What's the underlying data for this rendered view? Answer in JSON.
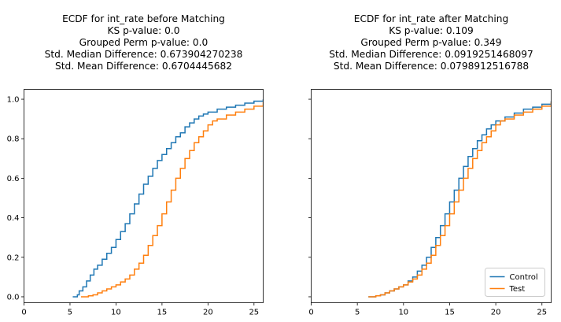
{
  "colors": {
    "control": "#1f77b4",
    "test": "#ff7f0e",
    "axes": "#000000",
    "legend_border": "#cccccc"
  },
  "chart_data": [
    {
      "type": "line",
      "variant": "ecdf-step",
      "title_lines": [
        "ECDF for int_rate before Matching",
        "KS p-value: 0.0",
        "Grouped Perm p-value: 0.0",
        "Std. Median Difference: 0.673904270238",
        "Std. Mean Difference: 0.6704445682"
      ],
      "xlabel": "",
      "ylabel": "",
      "xlim": [
        0,
        26
      ],
      "ylim": [
        -0.03,
        1.05
      ],
      "xticks": [
        "0",
        "5",
        "10",
        "15",
        "20",
        "25"
      ],
      "yticks": [
        "0.0",
        "0.2",
        "0.4",
        "0.6",
        "0.8",
        "1.0"
      ],
      "grid": false,
      "legend": null,
      "series": [
        {
          "key": "control",
          "x": [
            5.3,
            5.8,
            6.0,
            6.4,
            6.8,
            7.2,
            7.6,
            8.0,
            8.5,
            9.0,
            9.5,
            10.0,
            10.5,
            11.0,
            11.5,
            12.0,
            12.5,
            13.0,
            13.5,
            14.0,
            14.5,
            15.0,
            15.5,
            16.0,
            16.5,
            17.0,
            17.5,
            18.0,
            18.5,
            19.0,
            19.5,
            20.0,
            21.0,
            22.0,
            23.0,
            24.0,
            25.0,
            26.0
          ],
          "y": [
            0.0,
            0.01,
            0.03,
            0.05,
            0.08,
            0.11,
            0.14,
            0.16,
            0.19,
            0.22,
            0.25,
            0.29,
            0.33,
            0.37,
            0.42,
            0.47,
            0.52,
            0.57,
            0.61,
            0.65,
            0.69,
            0.72,
            0.75,
            0.78,
            0.81,
            0.83,
            0.86,
            0.88,
            0.9,
            0.915,
            0.925,
            0.935,
            0.95,
            0.96,
            0.97,
            0.98,
            0.99,
            1.0
          ]
        },
        {
          "key": "test",
          "x": [
            6.2,
            7.0,
            7.5,
            8.0,
            8.5,
            9.0,
            9.5,
            10.0,
            10.5,
            11.0,
            11.5,
            12.0,
            12.5,
            13.0,
            13.5,
            14.0,
            14.5,
            15.0,
            15.5,
            16.0,
            16.5,
            17.0,
            17.5,
            18.0,
            18.5,
            19.0,
            19.5,
            20.0,
            20.5,
            21.0,
            22.0,
            23.0,
            24.0,
            25.0,
            26.0
          ],
          "y": [
            0.0,
            0.005,
            0.01,
            0.02,
            0.03,
            0.04,
            0.05,
            0.06,
            0.075,
            0.09,
            0.11,
            0.14,
            0.17,
            0.21,
            0.26,
            0.31,
            0.36,
            0.42,
            0.48,
            0.54,
            0.6,
            0.65,
            0.7,
            0.74,
            0.78,
            0.81,
            0.84,
            0.87,
            0.89,
            0.9,
            0.92,
            0.935,
            0.95,
            0.965,
            0.985
          ]
        }
      ]
    },
    {
      "type": "line",
      "variant": "ecdf-step",
      "title_lines": [
        "ECDF for int_rate after Matching",
        "KS p-value: 0.109",
        "Grouped Perm p-value: 0.349",
        "Std. Median Difference: 0.0919251468097",
        "Std. Mean Difference: 0.0798912516788"
      ],
      "xlabel": "",
      "ylabel": "",
      "xlim": [
        0,
        26
      ],
      "ylim": [
        -0.03,
        1.05
      ],
      "xticks": [
        "0",
        "5",
        "10",
        "15",
        "20",
        "25"
      ],
      "yticks": [],
      "grid": false,
      "legend": {
        "position": "lower right",
        "entries": [
          "Control",
          "Test"
        ]
      },
      "series": [
        {
          "key": "control",
          "name": "Control",
          "x": [
            6.2,
            7.0,
            7.5,
            8.0,
            8.5,
            9.0,
            9.5,
            10.0,
            10.5,
            11.0,
            11.5,
            12.0,
            12.5,
            13.0,
            13.5,
            14.0,
            14.5,
            15.0,
            15.5,
            16.0,
            16.5,
            17.0,
            17.5,
            18.0,
            18.5,
            19.0,
            19.5,
            20.0,
            21.0,
            22.0,
            23.0,
            24.0,
            25.0,
            26.0
          ],
          "y": [
            0.0,
            0.005,
            0.01,
            0.02,
            0.03,
            0.04,
            0.05,
            0.06,
            0.08,
            0.1,
            0.13,
            0.16,
            0.2,
            0.25,
            0.3,
            0.36,
            0.42,
            0.48,
            0.54,
            0.6,
            0.66,
            0.71,
            0.75,
            0.79,
            0.82,
            0.85,
            0.87,
            0.89,
            0.91,
            0.93,
            0.95,
            0.96,
            0.975,
            0.99
          ]
        },
        {
          "key": "test",
          "name": "Test",
          "x": [
            6.2,
            7.0,
            7.5,
            8.0,
            8.5,
            9.0,
            9.5,
            10.0,
            10.5,
            11.0,
            11.5,
            12.0,
            12.5,
            13.0,
            13.5,
            14.0,
            14.5,
            15.0,
            15.5,
            16.0,
            16.5,
            17.0,
            17.5,
            18.0,
            18.5,
            19.0,
            19.5,
            20.0,
            20.5,
            21.0,
            22.0,
            23.0,
            24.0,
            25.0,
            26.0
          ],
          "y": [
            0.0,
            0.005,
            0.01,
            0.02,
            0.03,
            0.04,
            0.05,
            0.06,
            0.075,
            0.09,
            0.11,
            0.14,
            0.17,
            0.21,
            0.26,
            0.31,
            0.36,
            0.42,
            0.48,
            0.54,
            0.6,
            0.65,
            0.7,
            0.74,
            0.78,
            0.81,
            0.84,
            0.87,
            0.89,
            0.9,
            0.92,
            0.935,
            0.95,
            0.965,
            0.985
          ]
        }
      ]
    }
  ]
}
